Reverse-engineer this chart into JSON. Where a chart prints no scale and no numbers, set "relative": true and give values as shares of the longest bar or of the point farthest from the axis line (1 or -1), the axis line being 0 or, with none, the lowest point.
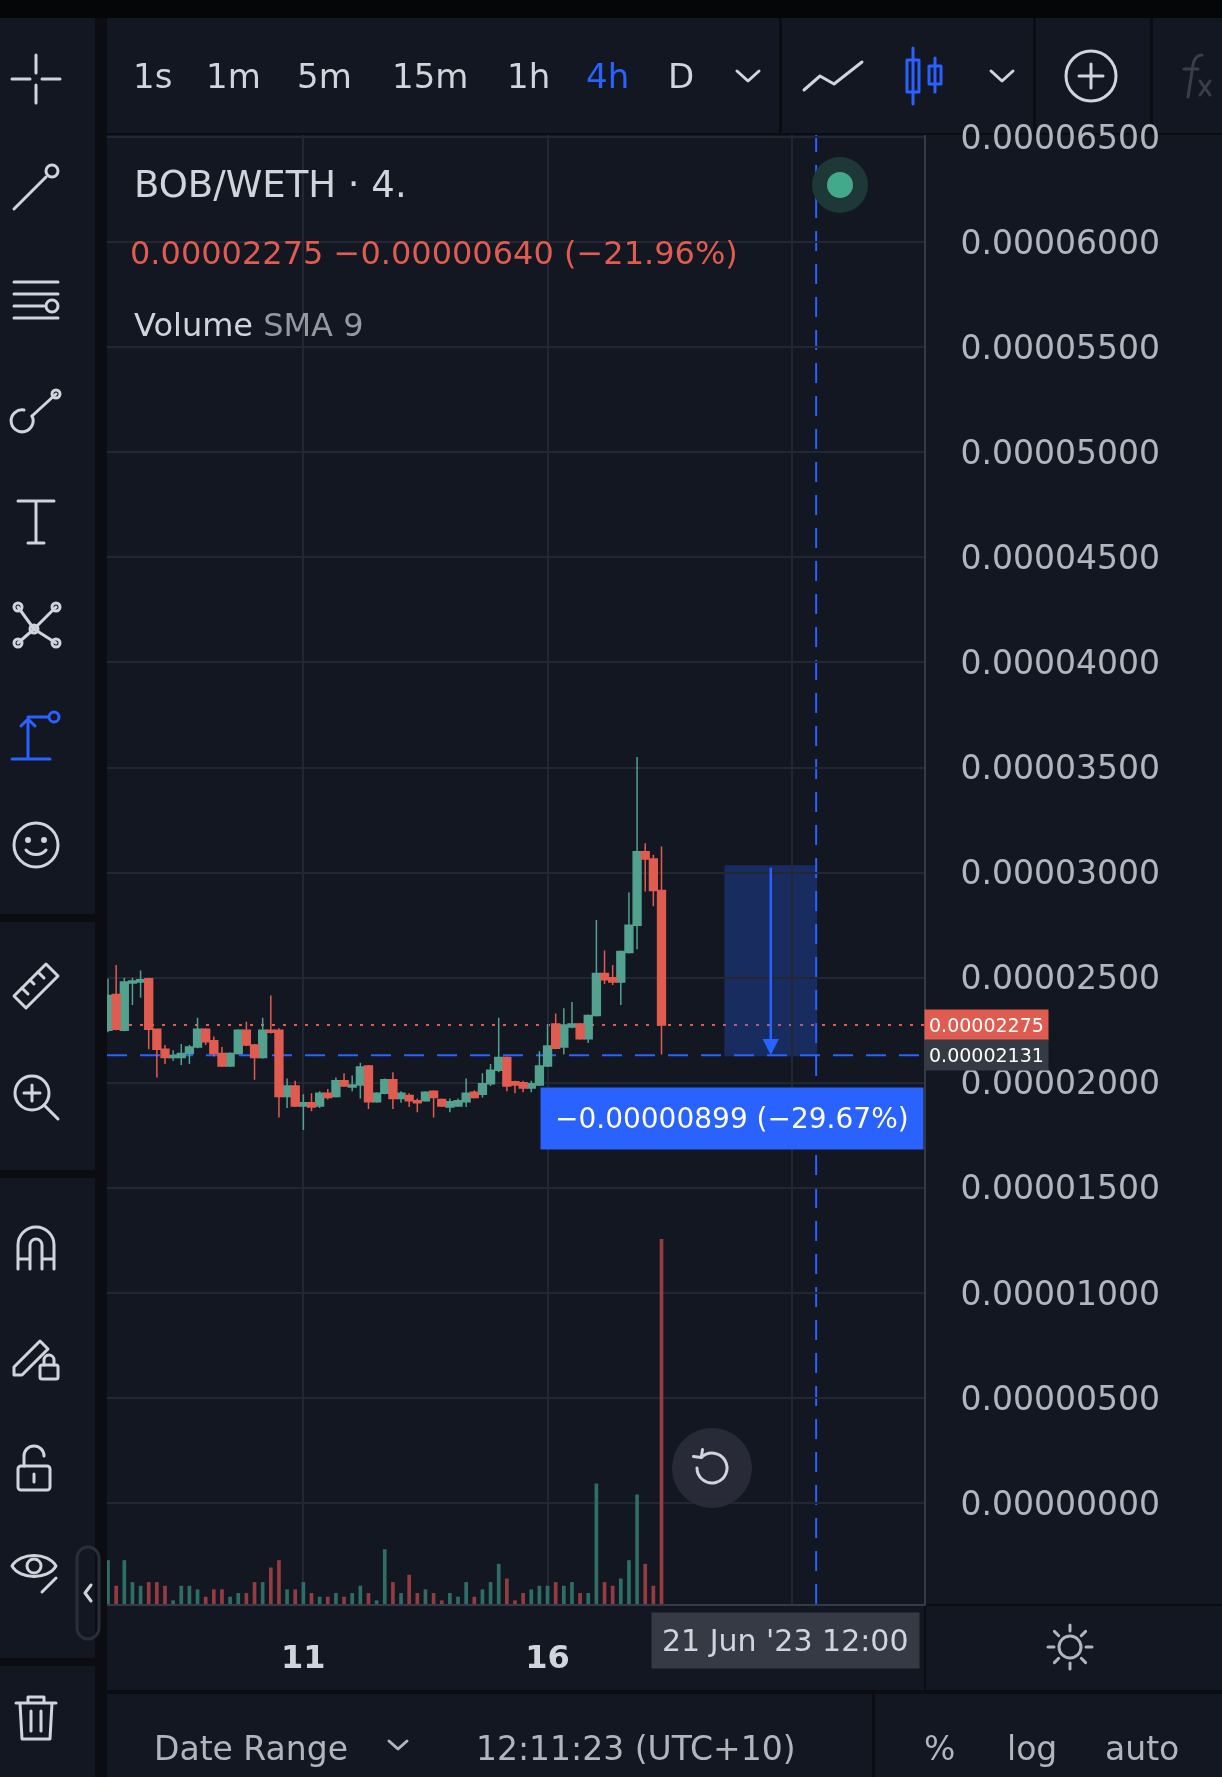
{
  "chart_data": [
    {
      "type": "candlestick",
      "title": "BOB/WETH · 4.",
      "subtitle": "0.00002275 −0.00000640 (−21.96%)",
      "x": [
        "2023-06-07T00:00",
        "2023-06-07T04:00",
        "2023-06-07T08:00",
        "2023-06-07T12:00",
        "2023-06-07T16:00",
        "2023-06-07T20:00",
        "2023-06-08T00:00",
        "2023-06-08T04:00",
        "2023-06-08T08:00",
        "2023-06-08T12:00",
        "2023-06-08T16:00",
        "2023-06-08T20:00",
        "2023-06-09T00:00",
        "2023-06-09T04:00",
        "2023-06-09T08:00",
        "2023-06-09T12:00",
        "2023-06-09T16:00",
        "2023-06-09T20:00",
        "2023-06-10T00:00",
        "2023-06-10T04:00",
        "2023-06-10T08:00",
        "2023-06-10T12:00",
        "2023-06-10T16:00",
        "2023-06-10T20:00",
        "2023-06-11T00:00",
        "2023-06-11T04:00",
        "2023-06-11T08:00",
        "2023-06-11T12:00",
        "2023-06-11T16:00",
        "2023-06-11T20:00",
        "2023-06-12T00:00",
        "2023-06-12T04:00",
        "2023-06-12T08:00",
        "2023-06-12T12:00",
        "2023-06-12T16:00",
        "2023-06-12T20:00",
        "2023-06-13T00:00",
        "2023-06-13T04:00",
        "2023-06-13T08:00",
        "2023-06-13T12:00",
        "2023-06-13T16:00",
        "2023-06-13T20:00",
        "2023-06-14T00:00",
        "2023-06-14T04:00",
        "2023-06-14T08:00",
        "2023-06-14T12:00",
        "2023-06-14T16:00",
        "2023-06-14T20:00",
        "2023-06-15T00:00",
        "2023-06-15T04:00",
        "2023-06-15T08:00",
        "2023-06-15T12:00",
        "2023-06-15T16:00",
        "2023-06-15T20:00",
        "2023-06-16T00:00",
        "2023-06-16T04:00",
        "2023-06-16T08:00",
        "2023-06-16T12:00",
        "2023-06-16T16:00",
        "2023-06-16T20:00",
        "2023-06-17T00:00",
        "2023-06-17T04:00",
        "2023-06-17T08:00",
        "2023-06-17T12:00",
        "2023-06-17T16:00",
        "2023-06-17T20:00",
        "2023-06-18T00:00",
        "2023-06-18T04:00",
        "2023-06-18T08:00"
      ],
      "ohlc": [
        [
          2.25e-05,
          2.495e-05,
          2.24e-05,
          2.415e-05
        ],
        [
          2.42e-05,
          2.56e-05,
          2.25e-05,
          2.255e-05
        ],
        [
          2.25e-05,
          2.5e-05,
          2.245e-05,
          2.48e-05
        ],
        [
          2.475e-05,
          2.5e-05,
          2.37e-05,
          2.485e-05
        ],
        [
          2.48e-05,
          2.535e-05,
          2.405e-05,
          2.49e-05
        ],
        [
          2.495e-05,
          2.5e-05,
          2.16e-05,
          2.255e-05
        ],
        [
          2.255e-05,
          2.255e-05,
          2.025e-05,
          2.16e-05
        ],
        [
          2.16e-05,
          2.18e-05,
          2.09e-05,
          2.12e-05
        ],
        [
          2.12e-05,
          2.155e-05,
          2.105e-05,
          2.13e-05
        ],
        [
          2.12e-05,
          2.185e-05,
          2.085e-05,
          2.14e-05
        ],
        [
          2.14e-05,
          2.18e-05,
          2.09e-05,
          2.17e-05
        ],
        [
          2.17e-05,
          2.31e-05,
          2.165e-05,
          2.255e-05
        ],
        [
          2.255e-05,
          2.26e-05,
          2.18e-05,
          2.195e-05
        ],
        [
          2.2e-05,
          2.22e-05,
          2.125e-05,
          2.14e-05
        ],
        [
          2.14e-05,
          2.17e-05,
          2.075e-05,
          2.08e-05
        ],
        [
          2.08e-05,
          2.145e-05,
          2.075e-05,
          2.14e-05
        ],
        [
          2.14e-05,
          2.255e-05,
          2.135e-05,
          2.25e-05
        ],
        [
          2.25e-05,
          2.29e-05,
          2.175e-05,
          2.18e-05
        ],
        [
          2.18e-05,
          2.185e-05,
          2.015e-05,
          2.12e-05
        ],
        [
          2.12e-05,
          2.31e-05,
          2.115e-05,
          2.25e-05
        ],
        [
          2.25e-05,
          2.415e-05,
          2.235e-05,
          2.24e-05
        ],
        [
          2.25e-05,
          2.26e-05,
          1.835e-05,
          1.935e-05
        ],
        [
          1.935e-05,
          2.02e-05,
          1.88e-05,
          1.985e-05
        ],
        [
          1.985e-05,
          2.01e-05,
          1.885e-05,
          1.89e-05
        ],
        [
          1.89e-05,
          1.945e-05,
          1.775e-05,
          1.905e-05
        ],
        [
          1.905e-05,
          1.95e-05,
          1.865e-05,
          1.885e-05
        ],
        [
          1.89e-05,
          1.96e-05,
          1.88e-05,
          1.95e-05
        ],
        [
          1.95e-05,
          1.97e-05,
          1.92e-05,
          1.93e-05
        ],
        [
          1.935e-05,
          2.025e-05,
          1.93e-05,
          2.01e-05
        ],
        [
          2.01e-05,
          2.045e-05,
          1.98e-05,
          1.985e-05
        ],
        [
          1.98e-05,
          2.035e-05,
          1.96e-05,
          1.99e-05
        ],
        [
          1.99e-05,
          2.095e-05,
          1.925e-05,
          2.075e-05
        ],
        [
          2.08e-05,
          2.085e-05,
          1.875e-05,
          1.91e-05
        ],
        [
          1.91e-05,
          1.955e-05,
          1.905e-05,
          1.95e-05
        ],
        [
          1.95e-05,
          2.02e-05,
          1.945e-05,
          2.015e-05
        ],
        [
          2.015e-05,
          2.05e-05,
          1.875e-05,
          1.925e-05
        ],
        [
          1.925e-05,
          1.96e-05,
          1.905e-05,
          1.95e-05
        ],
        [
          1.94e-05,
          1.95e-05,
          1.885e-05,
          1.915e-05
        ],
        [
          1.915e-05,
          1.925e-05,
          1.86e-05,
          1.905e-05
        ],
        [
          1.915e-05,
          1.96e-05,
          1.91e-05,
          1.955e-05
        ],
        [
          1.96e-05,
          1.965e-05,
          1.835e-05,
          1.93e-05
        ],
        [
          1.92e-05,
          1.925e-05,
          1.885e-05,
          1.89e-05
        ],
        [
          1.885e-05,
          1.925e-05,
          1.86e-05,
          1.91e-05
        ],
        [
          1.89e-05,
          1.925e-05,
          1.885e-05,
          1.915e-05
        ],
        [
          1.91e-05,
          2.02e-05,
          1.885e-05,
          1.95e-05
        ],
        [
          1.955e-05,
          1.965e-05,
          1.925e-05,
          1.93e-05
        ],
        [
          1.945e-05,
          2.045e-05,
          1.93e-05,
          1.995e-05
        ],
        [
          1.995e-05,
          2.09e-05,
          1.985e-05,
          2.06e-05
        ],
        [
          2.06e-05,
          2.31e-05,
          2.05e-05,
          2.12e-05
        ],
        [
          2.12e-05,
          2.125e-05,
          1.96e-05,
          1.985e-05
        ],
        [
          2.005e-05,
          2.01e-05,
          1.95e-05,
          1.99e-05
        ],
        [
          2e-05,
          2.01e-05,
          1.955e-05,
          1.975e-05
        ],
        [
          1.975e-05,
          2.01e-05,
          1.955e-05,
          1.995e-05
        ],
        [
          1.99e-05,
          2.15e-05,
          1.985e-05,
          2.08e-05
        ],
        [
          2.08e-05,
          2.28e-05,
          2.075e-05,
          2.175e-05
        ],
        [
          2.28e-05,
          2.33e-05,
          2.16e-05,
          2.165e-05
        ],
        [
          2.17e-05,
          2.355e-05,
          2.135e-05,
          2.275e-05
        ],
        [
          2.265e-05,
          2.385e-05,
          2.26e-05,
          2.28e-05
        ],
        [
          2.28e-05,
          2.285e-05,
          2.205e-05,
          2.21e-05
        ],
        [
          2.21e-05,
          2.325e-05,
          2.19e-05,
          2.32e-05
        ],
        [
          2.32e-05,
          2.775e-05,
          2.315e-05,
          2.52e-05
        ],
        [
          2.52e-05,
          2.63e-05,
          2.47e-05,
          2.49e-05
        ],
        [
          2.5e-05,
          2.56e-05,
          2.465e-05,
          2.48e-05
        ],
        [
          2.48e-05,
          2.63e-05,
          2.37e-05,
          2.625e-05
        ],
        [
          2.62e-05,
          2.905e-05,
          2.615e-05,
          2.75e-05
        ],
        [
          2.75e-05,
          3.55e-05,
          2.635e-05,
          3.1e-05
        ],
        [
          3.1e-05,
          3.14e-05,
          2.91e-05,
          3.065e-05
        ],
        [
          3.065e-05,
          3.085e-05,
          2.84e-05,
          2.915e-05
        ],
        [
          2.915e-05,
          3.125e-05,
          2.135e-05,
          2.275e-05
        ]
      ],
      "colors": [
        "#53a18f",
        "#e05c50",
        "#53a18f",
        "#53a18f",
        "#53a18f",
        "#e05c50",
        "#e05c50",
        "#e05c50",
        "#53a18f",
        "#53a18f",
        "#53a18f",
        "#53a18f",
        "#e05c50",
        "#e05c50",
        "#e05c50",
        "#53a18f",
        "#53a18f",
        "#e05c50",
        "#e05c50",
        "#53a18f",
        "#e05c50",
        "#e05c50",
        "#53a18f",
        "#e05c50",
        "#53a18f",
        "#e05c50",
        "#53a18f",
        "#e05c50",
        "#53a18f",
        "#e05c50",
        "#53a18f",
        "#53a18f",
        "#e05c50",
        "#53a18f",
        "#53a18f",
        "#e05c50",
        "#53a18f",
        "#e05c50",
        "#e05c50",
        "#53a18f",
        "#e05c50",
        "#e05c50",
        "#53a18f",
        "#53a18f",
        "#53a18f",
        "#e05c50",
        "#53a18f",
        "#53a18f",
        "#53a18f",
        "#e05c50",
        "#e05c50",
        "#e05c50",
        "#53a18f",
        "#53a18f",
        "#53a18f",
        "#e05c50",
        "#53a18f",
        "#53a18f",
        "#e05c50",
        "#53a18f",
        "#53a18f",
        "#e05c50",
        "#e05c50",
        "#53a18f",
        "#53a18f",
        "#53a18f",
        "#e05c50",
        "#e05c50",
        "#e05c50"
      ],
      "xlim": [
        "2023-06-06T23:30",
        "2023-06-23T17:00"
      ],
      "xticks": [
        {
          "value": "2023-06-11",
          "label": "11"
        },
        {
          "value": "2023-06-16",
          "label": "16"
        },
        {
          "value": "2023-06-21",
          "label": null
        }
      ],
      "ylim": [
        -4.8e-06,
        6.51e-05
      ],
      "yticks": [
        {
          "value": 6.5e-05,
          "label": "0.00006500"
        },
        {
          "value": 6e-05,
          "label": "0.00006000"
        },
        {
          "value": 5.5e-05,
          "label": "0.00005500"
        },
        {
          "value": 5e-05,
          "label": "0.00005000"
        },
        {
          "value": 4.5e-05,
          "label": "0.00004500"
        },
        {
          "value": 4e-05,
          "label": "0.00004000"
        },
        {
          "value": 3.5e-05,
          "label": "0.00003500"
        },
        {
          "value": 3e-05,
          "label": "0.00003000"
        },
        {
          "value": 2.5e-05,
          "label": "0.00002500"
        },
        {
          "value": 2e-05,
          "label": "0.00002000"
        },
        {
          "value": 1.5e-05,
          "label": "0.00001500"
        },
        {
          "value": 1e-05,
          "label": "0.00001000"
        },
        {
          "value": 5e-06,
          "label": "0.00000500"
        },
        {
          "value": 0,
          "label": "0.00000000"
        }
      ],
      "grid": true,
      "ref_lines": [
        {
          "axis": "y",
          "value": 2.275e-05,
          "label": "0.00002275",
          "color": "#e05c50",
          "line_style": "dotted"
        },
        {
          "axis": "y",
          "value": 2.131e-05,
          "label": "0.00002131",
          "color": "#2962ff",
          "line_style": "dashed"
        },
        {
          "axis": "x",
          "value": "2023-06-21T12:00",
          "label": "21 Jun '23 12:00",
          "color": "#2962ff",
          "line_style": "dashed"
        }
      ],
      "bands": [
        {
          "axis": "y",
          "from": 2.131e-05,
          "to": 3.03e-05,
          "label": "−0.00000899 (−29.67%)",
          "color": "#2962ff"
        }
      ]
    },
    {
      "type": "bar",
      "title": "Volume",
      "subtitle": "SMA 9",
      "relative": true,
      "tick_labels": false,
      "x": [
        "2023-06-07T00:00",
        "2023-06-07T04:00",
        "2023-06-07T08:00",
        "2023-06-07T12:00",
        "2023-06-07T16:00",
        "2023-06-07T20:00",
        "2023-06-08T00:00",
        "2023-06-08T04:00",
        "2023-06-08T08:00",
        "2023-06-08T12:00",
        "2023-06-08T16:00",
        "2023-06-08T20:00",
        "2023-06-09T00:00",
        "2023-06-09T04:00",
        "2023-06-09T08:00",
        "2023-06-09T12:00",
        "2023-06-09T16:00",
        "2023-06-09T20:00",
        "2023-06-10T00:00",
        "2023-06-10T04:00",
        "2023-06-10T08:00",
        "2023-06-10T12:00",
        "2023-06-10T16:00",
        "2023-06-10T20:00",
        "2023-06-11T00:00",
        "2023-06-11T04:00",
        "2023-06-11T08:00",
        "2023-06-11T12:00",
        "2023-06-11T16:00",
        "2023-06-11T20:00",
        "2023-06-12T00:00",
        "2023-06-12T04:00",
        "2023-06-12T08:00",
        "2023-06-12T12:00",
        "2023-06-12T16:00",
        "2023-06-12T20:00",
        "2023-06-13T00:00",
        "2023-06-13T04:00",
        "2023-06-13T08:00",
        "2023-06-13T12:00",
        "2023-06-13T16:00",
        "2023-06-13T20:00",
        "2023-06-14T00:00",
        "2023-06-14T04:00",
        "2023-06-14T08:00",
        "2023-06-14T12:00",
        "2023-06-14T16:00",
        "2023-06-14T20:00",
        "2023-06-15T00:00",
        "2023-06-15T04:00",
        "2023-06-15T08:00",
        "2023-06-15T12:00",
        "2023-06-15T16:00",
        "2023-06-15T20:00",
        "2023-06-16T00:00",
        "2023-06-16T04:00",
        "2023-06-16T08:00",
        "2023-06-16T12:00",
        "2023-06-16T16:00",
        "2023-06-16T20:00",
        "2023-06-17T00:00",
        "2023-06-17T04:00",
        "2023-06-17T08:00",
        "2023-06-17T12:00",
        "2023-06-17T16:00",
        "2023-06-17T20:00",
        "2023-06-18T00:00",
        "2023-06-18T04:00",
        "2023-06-18T08:00"
      ],
      "values": [
        0.12,
        0.05,
        0.12,
        0.06,
        0.05,
        0.06,
        0.06,
        0.05,
        0.01,
        0.05,
        0.05,
        0.04,
        0.02,
        0.04,
        0.04,
        0.02,
        0.03,
        0.03,
        0.06,
        0.06,
        0.1,
        0.12,
        0.04,
        0.04,
        0.06,
        0.03,
        0.02,
        0.02,
        0.03,
        0.02,
        0.03,
        0.05,
        0.03,
        0.01,
        0.15,
        0.06,
        0.03,
        0.08,
        0.03,
        0.04,
        0.03,
        0.01,
        0.03,
        0.02,
        0.06,
        0.02,
        0.04,
        0.06,
        0.11,
        0.07,
        0.01,
        0.03,
        0.04,
        0.05,
        0.05,
        0.06,
        0.05,
        0.06,
        0.03,
        0.03,
        0.33,
        0.06,
        0.05,
        0.07,
        0.12,
        0.3,
        0.11,
        0.05,
        1
      ],
      "colors": [
        "#2e6e64",
        "#933c41",
        "#2e6e64",
        "#2e6e64",
        "#2e6e64",
        "#933c41",
        "#933c41",
        "#933c41",
        "#2e6e64",
        "#2e6e64",
        "#2e6e64",
        "#2e6e64",
        "#933c41",
        "#933c41",
        "#933c41",
        "#2e6e64",
        "#2e6e64",
        "#933c41",
        "#933c41",
        "#2e6e64",
        "#933c41",
        "#933c41",
        "#2e6e64",
        "#933c41",
        "#2e6e64",
        "#933c41",
        "#2e6e64",
        "#933c41",
        "#2e6e64",
        "#933c41",
        "#2e6e64",
        "#2e6e64",
        "#933c41",
        "#2e6e64",
        "#2e6e64",
        "#933c41",
        "#2e6e64",
        "#933c41",
        "#933c41",
        "#2e6e64",
        "#933c41",
        "#933c41",
        "#2e6e64",
        "#2e6e64",
        "#2e6e64",
        "#933c41",
        "#2e6e64",
        "#2e6e64",
        "#2e6e64",
        "#933c41",
        "#933c41",
        "#933c41",
        "#2e6e64",
        "#2e6e64",
        "#2e6e64",
        "#933c41",
        "#2e6e64",
        "#2e6e64",
        "#933c41",
        "#2e6e64",
        "#2e6e64",
        "#933c41",
        "#933c41",
        "#2e6e64",
        "#2e6e64",
        "#2e6e64",
        "#933c41",
        "#933c41",
        "#933c41"
      ],
      "xlim": [
        "2023-06-06T23:30",
        "2023-06-23T17:00"
      ]
    },
    {
      "type": "other",
      "annotations": [
        "1s",
        "1m",
        "5m",
        "15m",
        "1h",
        "4h",
        "D",
        "Date Range",
        "12:11:23 (UTC+10)",
        "%",
        "log",
        "auto"
      ]
    }
  ]
}
